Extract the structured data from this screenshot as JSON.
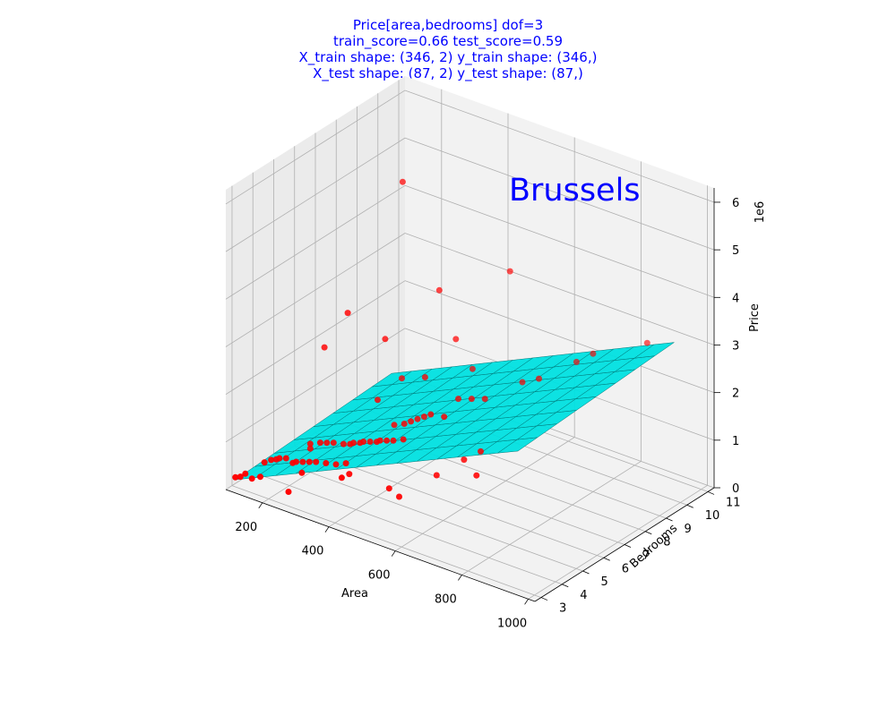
{
  "chart_data": {
    "type": "scatter",
    "subtype": "3d-scatter-with-surface",
    "title_lines": [
      "Price[area,bedrooms]  dof=3",
      "train_score=0.66  test_score=0.59",
      "X_train shape: (346, 2)  y_train shape: (346,)",
      "X_test shape: (87, 2)  y_test shape: (87,)"
    ],
    "annotation": "Brussels",
    "xlabel": "Area",
    "ylabel": "Bedrooms",
    "zlabel": "Price",
    "z_offset_label": "1e6",
    "x_ticks": [
      "200",
      "400",
      "600",
      "800",
      "1000"
    ],
    "y_ticks": [
      "3",
      "4",
      "5",
      "6",
      "7",
      "8",
      "9",
      "10",
      "11"
    ],
    "z_ticks": [
      "0",
      "1",
      "2",
      "3",
      "4",
      "5",
      "6"
    ],
    "xlim": [
      90,
      1020
    ],
    "ylim": [
      2.7,
      11.3
    ],
    "zlim": [
      0,
      6.3
    ],
    "grid": true,
    "colors": {
      "points": "#ff0000",
      "surface": "#00e0e0",
      "surface_edge": "#007575",
      "text": "#0000ff"
    },
    "series": [
      {
        "kind": "scatter",
        "x": [
          100,
          115,
          125,
          130,
          145,
          150,
          160,
          170,
          175,
          190,
          200,
          210,
          220,
          230,
          240,
          250,
          260,
          270,
          280,
          300,
          310,
          320,
          330,
          340,
          350,
          360,
          370,
          380,
          390,
          400,
          410,
          420,
          430,
          440,
          450,
          460,
          480,
          500,
          520,
          540,
          560,
          600,
          650,
          700,
          750,
          800,
          900,
          250,
          300,
          350,
          400,
          450,
          500,
          550,
          300,
          380,
          420,
          480,
          530,
          600,
          180,
          260,
          340,
          420,
          500,
          580,
          650,
          700,
          200,
          290
        ],
        "y": [
          3,
          3,
          4,
          3,
          4,
          3,
          4,
          4,
          3,
          4,
          5,
          4,
          4,
          5,
          4,
          5,
          4,
          5,
          4,
          5,
          4,
          5,
          5,
          4,
          5,
          5,
          4,
          5,
          6,
          5,
          5,
          6,
          5,
          6,
          5,
          6,
          6,
          6,
          7,
          6,
          7,
          7,
          8,
          8,
          9,
          9,
          10,
          6,
          7,
          7,
          8,
          8,
          8,
          9,
          3,
          4,
          3,
          5,
          4,
          6,
          6,
          3,
          6,
          7,
          4,
          5,
          6,
          5,
          5,
          8
        ],
        "z": [
          0.2,
          0.25,
          0.3,
          0.35,
          0.4,
          0.3,
          0.45,
          0.5,
          0.4,
          0.55,
          0.6,
          0.5,
          0.55,
          0.7,
          0.6,
          0.75,
          0.65,
          0.8,
          0.7,
          0.85,
          0.75,
          0.9,
          0.95,
          0.8,
          1.0,
          1.05,
          0.9,
          1.1,
          1.2,
          1.15,
          1.2,
          1.3,
          1.25,
          1.4,
          1.3,
          1.5,
          1.6,
          1.7,
          1.8,
          1.75,
          1.9,
          2.0,
          2.2,
          2.4,
          2.6,
          2.9,
          3.1,
          3.2,
          2.5,
          1.8,
          3.5,
          2.6,
          2.1,
          4.0,
          0.8,
          0.7,
          1.0,
          1.4,
          0.6,
          1.0,
          2.3,
          0.3,
          1.6,
          2.0,
          0.7,
          0.9,
          1.3,
          1.2,
          0.5,
          5.5
        ]
      }
    ],
    "surface": {
      "kind": "surface",
      "formula": "fitted polynomial surface over area and bedrooms",
      "z_corners": {
        "x_min_y_min": 0.15,
        "x_max_y_min": 2.9,
        "x_min_y_max": 0.3,
        "x_max_y_max": 3.1
      }
    }
  }
}
